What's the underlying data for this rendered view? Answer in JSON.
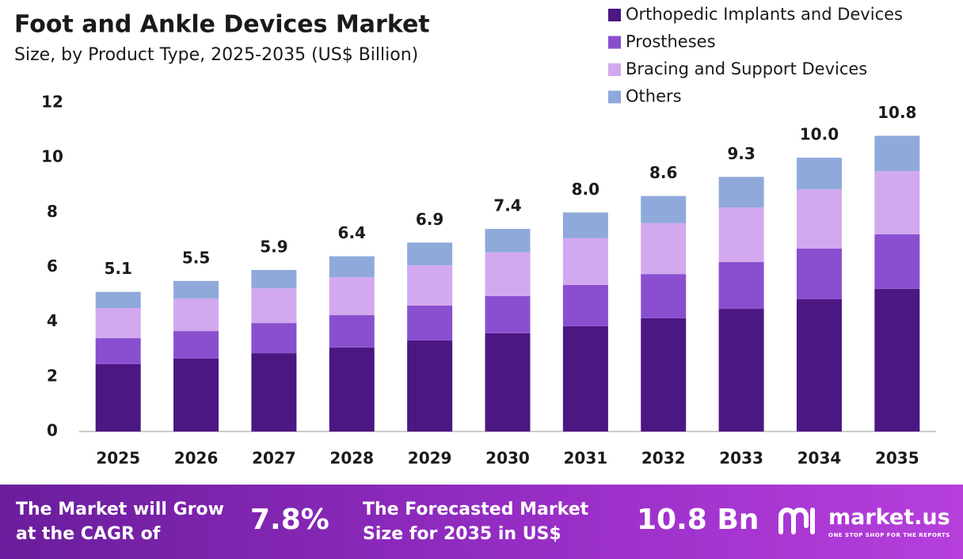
{
  "chart_data": {
    "type": "stacked_bar",
    "title": "Foot and Ankle Devices Market",
    "subtitle": "Size, by Product Type, 2025-2035 (US$ Billion)",
    "categories": [
      "2025",
      "2026",
      "2027",
      "2028",
      "2029",
      "2030",
      "2031",
      "2032",
      "2033",
      "2034",
      "2035"
    ],
    "series": [
      {
        "name": "Orthopedic Implants and Devices",
        "color": "#4b1782",
        "values": [
          2.46,
          2.66,
          2.86,
          3.07,
          3.33,
          3.59,
          3.85,
          4.14,
          4.48,
          4.83,
          5.21
        ]
      },
      {
        "name": "Prostheses",
        "color": "#8a4fcf",
        "values": [
          0.95,
          1.01,
          1.1,
          1.18,
          1.27,
          1.36,
          1.5,
          1.61,
          1.71,
          1.85,
          1.99
        ]
      },
      {
        "name": "Bracing and Support Devices",
        "color": "#d2a9ee",
        "values": [
          1.1,
          1.19,
          1.27,
          1.39,
          1.47,
          1.59,
          1.71,
          1.86,
          1.99,
          2.17,
          2.31
        ]
      },
      {
        "name": "Others",
        "color": "#8fa9db",
        "values": [
          0.59,
          0.64,
          0.67,
          0.76,
          0.83,
          0.86,
          0.94,
          0.99,
          1.12,
          1.15,
          1.29
        ]
      }
    ],
    "totals": {
      "values": [
        5.1,
        5.5,
        5.9,
        6.4,
        6.9,
        7.4,
        8.0,
        8.6,
        9.3,
        10.0,
        10.8
      ],
      "value_labels": [
        "5.1",
        "5.5",
        "5.9",
        "6.4",
        "6.9",
        "7.4",
        "8.0",
        "8.6",
        "9.3",
        "10.0",
        "10.8"
      ]
    },
    "ylim": [
      0,
      12
    ],
    "yticks": [
      0,
      2,
      4,
      6,
      8,
      10,
      12
    ],
    "grid": false,
    "legend": "top-right"
  },
  "footer": {
    "cagr_text": [
      "The Market will Grow",
      "at the CAGR of"
    ],
    "cagr_value": "7.8%",
    "forecast_text": [
      "The Forecasted Market",
      "Size for 2035 in US$"
    ],
    "forecast_value": "10.8 Bn",
    "brand": "market.us",
    "tagline": "ONE STOP SHOP FOR THE REPORTS"
  }
}
